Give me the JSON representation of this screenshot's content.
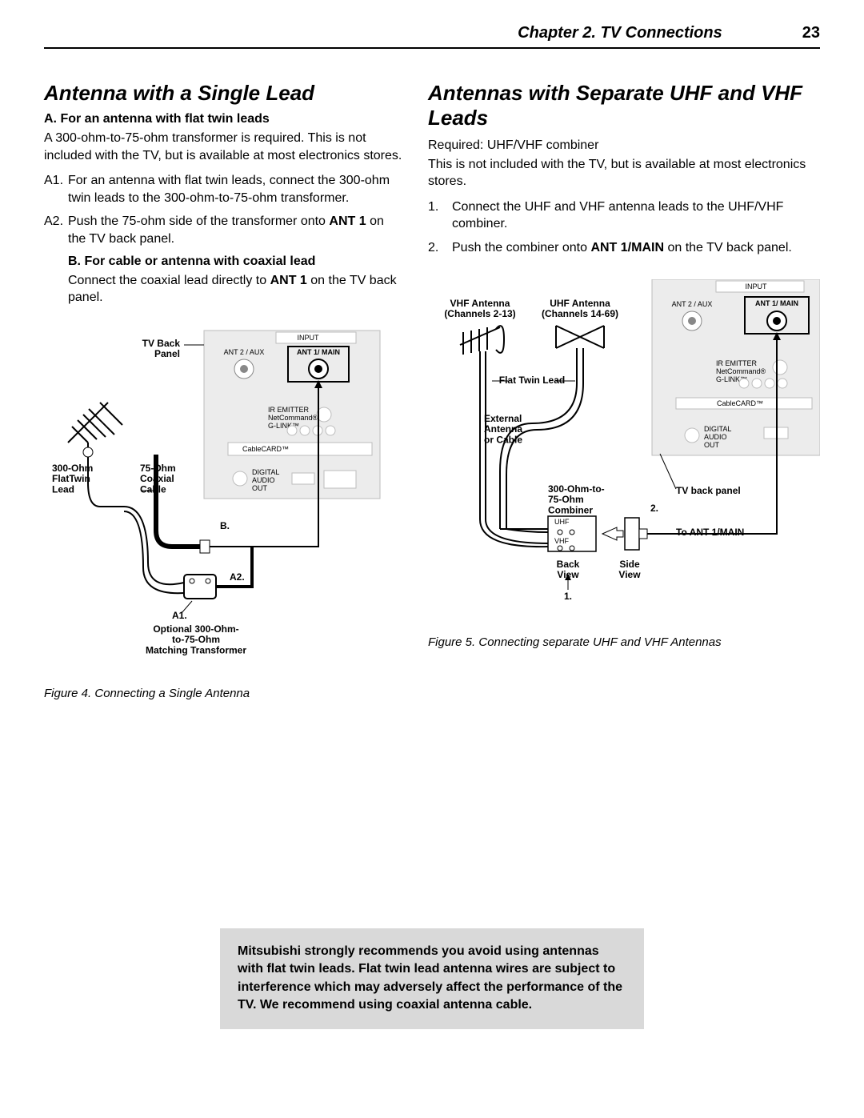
{
  "header": {
    "chapter": "Chapter 2. TV Connections",
    "page": "23"
  },
  "left": {
    "title": "Antenna with a Single Lead",
    "A_heading": "A.  For an antenna with flat twin leads",
    "A_intro": "A 300-ohm-to-75-ohm transformer is required.  This is not included with the TV, but is available at most electronics stores.",
    "A1_num": "A1.",
    "A1_txt": "For an antenna with flat twin leads, connect the 300-ohm twin leads to the 300-ohm-to-75-ohm transformer.",
    "A2_num": "A2.",
    "A2_txt_a": "Push the 75-ohm side of the transformer onto ",
    "A2_txt_bold": "ANT 1",
    "A2_txt_b": " on the TV back panel.",
    "B_heading": "B.  For cable or antenna with coaxial lead",
    "B_txt_a": "Connect the coaxial lead directly to ",
    "B_txt_bold": "ANT 1",
    "B_txt_b": " on the TV back panel.",
    "figcap": "Figure 4. Connecting a Single Antenna",
    "diagram": {
      "tv_back": "TV Back\nPanel",
      "ant2": "ANT 2 / AUX",
      "ant1": "ANT 1/ MAIN",
      "input": "INPUT",
      "ir": "IR EMITTER\nNetCommand®\nG-LINK™",
      "cablecard": "CableCARD™",
      "digital": "DIGITAL\nAUDIO\nOUT",
      "lead300": "300-Ohm\nFlatTwin\nLead",
      "lead75": "75-Ohm\nCoaxial\nCable",
      "B": "B.",
      "A2": "A2.",
      "A1": "A1.",
      "transformer": "Optional 300-Ohm-\nto-75-Ohm\nMatching Transformer"
    }
  },
  "right": {
    "title": "Antennas with Separate UHF and VHF Leads",
    "required": "Required:  UHF/VHF combiner",
    "intro": "This is not included with the TV, but is available at most electronics stores.",
    "s1_num": "1.",
    "s1_txt": "Connect the UHF and VHF antenna leads to the UHF/VHF combiner.",
    "s2_num": "2.",
    "s2_txt_a": "Push the combiner onto ",
    "s2_txt_bold": "ANT 1/MAIN",
    "s2_txt_b": " on the TV back panel.",
    "figcap": "Figure 5.  Connecting separate UHF and VHF Antennas",
    "diagram": {
      "vhf": "VHF Antenna\n(Channels 2-13)",
      "uhf": "UHF Antenna\n(Channels 14-69)",
      "flat": "Flat Twin Lead",
      "ext": "External\nAntenna\nor Cable",
      "combiner": "300-Ohm-to-\n75-Ohm\nCombiner",
      "tvback": "TV back panel",
      "n2": "2.",
      "toant": "To ANT 1/MAIN",
      "back": "Back\nView",
      "side": "Side\nView",
      "n1": "1.",
      "input": "INPUT",
      "ant2": "ANT 2 / AUX",
      "ant1": "ANT 1/ MAIN",
      "ir": "IR EMITTER\nNetCommand®\nG-LINK™",
      "cablecard": "CableCARD™",
      "digital": "DIGITAL\nAUDIO\nOUT"
    }
  },
  "warning": "Mitsubishi strongly recommends you avoid using antennas with flat twin leads.  Flat twin lead antenna wires are subject to interference which may adversely affect the performance of the TV.  We recommend using coaxial antenna cable.",
  "colors": {
    "panel_fill": "#ececec",
    "panel_stroke": "#bdbdbd",
    "warn_bg": "#d9d9d9"
  }
}
